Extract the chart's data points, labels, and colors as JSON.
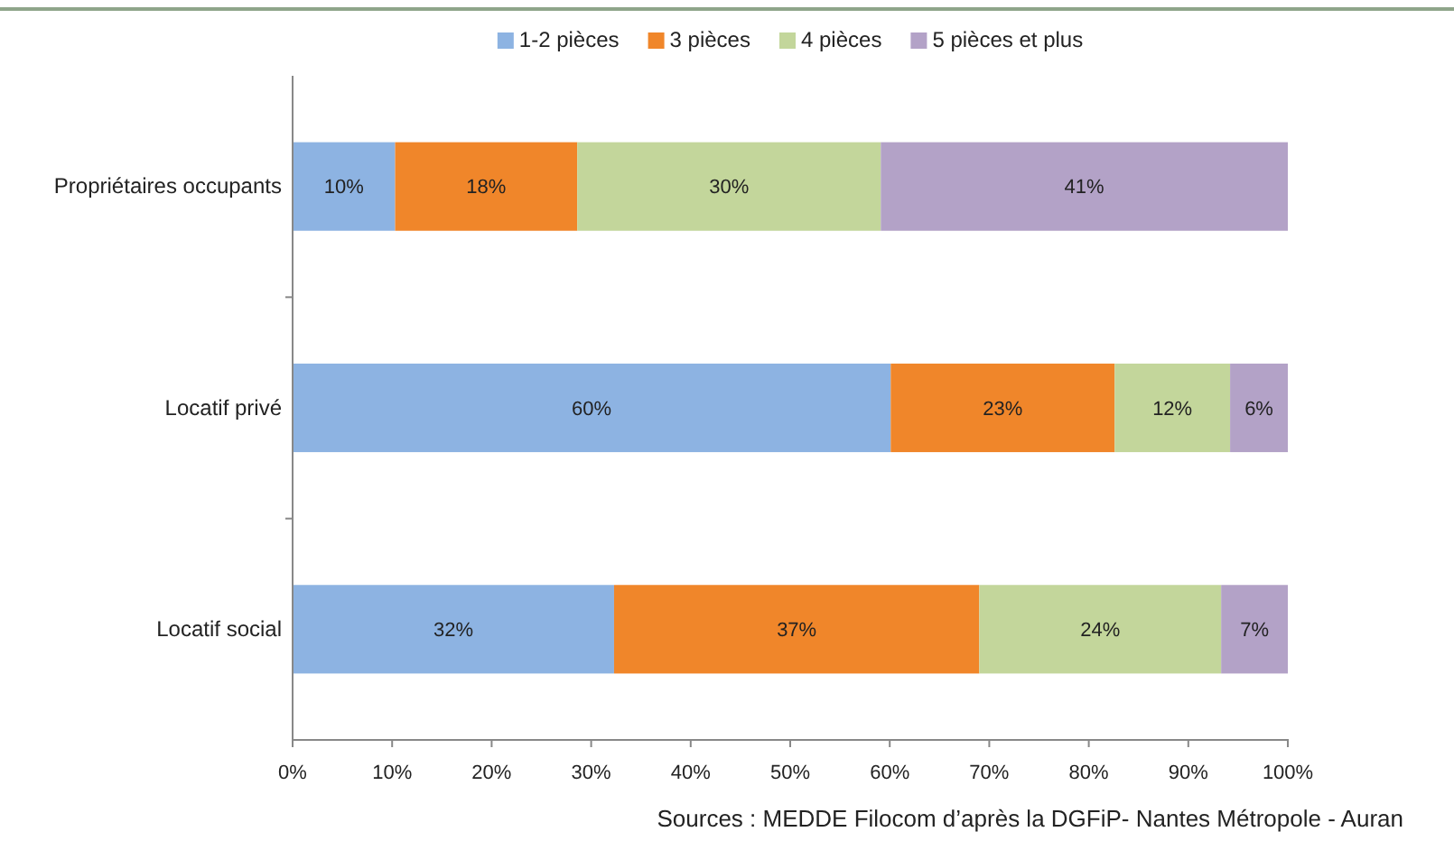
{
  "chart_data": {
    "type": "bar",
    "orientation": "horizontal",
    "stacked": true,
    "categories": [
      "Propriétaires occupants",
      "Locatif privé",
      "Locatif social"
    ],
    "series": [
      {
        "name": "1-2 pièces",
        "color": "#8db3e2",
        "values": [
          10.3,
          60.1,
          32.3
        ],
        "value_labels": [
          "10%",
          "60%",
          "32%"
        ]
      },
      {
        "name": "3 pièces",
        "color": "#f0862a",
        "values": [
          18.3,
          22.5,
          36.7
        ],
        "value_labels": [
          "18%",
          "23%",
          "37%"
        ]
      },
      {
        "name": "4 pièces",
        "color": "#c3d69b",
        "values": [
          30.5,
          11.6,
          24.3
        ],
        "value_labels": [
          "30%",
          "12%",
          "24%"
        ]
      },
      {
        "name": "5 pièces et plus",
        "color": "#b3a2c7",
        "values": [
          40.9,
          5.8,
          6.7
        ],
        "value_labels": [
          "41%",
          "6%",
          "7%"
        ]
      }
    ],
    "xlim": [
      0,
      100
    ],
    "xticks": [
      {
        "value": 0,
        "label": "0%"
      },
      {
        "value": 10,
        "label": "10%"
      },
      {
        "value": 20,
        "label": "20%"
      },
      {
        "value": 30,
        "label": "30%"
      },
      {
        "value": 40,
        "label": "40%"
      },
      {
        "value": 50,
        "label": "50%"
      },
      {
        "value": 60,
        "label": "60%"
      },
      {
        "value": 70,
        "label": "70%"
      },
      {
        "value": 80,
        "label": "80%"
      },
      {
        "value": 90,
        "label": "90%"
      },
      {
        "value": 100,
        "label": "100%"
      }
    ],
    "grid": false,
    "legend": "top",
    "annotations": [
      "Sources : MEDDE Filocom d’après la DGFiP-  Nantes Métropole - Auran"
    ]
  }
}
